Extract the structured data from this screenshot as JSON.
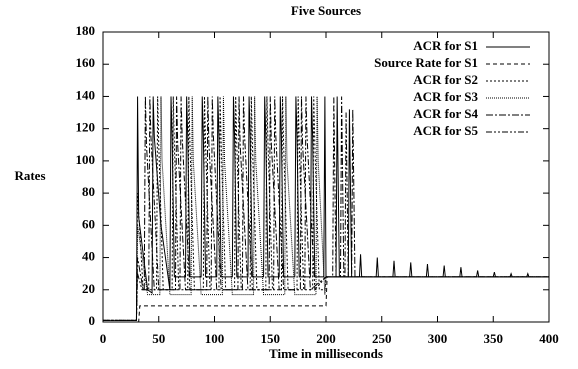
{
  "chart_data": {
    "type": "line",
    "title": "Five Sources",
    "xlabel": "Time in milliseconds",
    "ylabel": "Rates",
    "xlim": [
      0,
      400
    ],
    "xticks": [
      0,
      50,
      100,
      150,
      200,
      250,
      300,
      350,
      400
    ],
    "ylim": [
      0,
      180
    ],
    "yticks": [
      0,
      20,
      40,
      60,
      80,
      100,
      120,
      140,
      160,
      180
    ],
    "legend": "top-right",
    "series": [
      {
        "name": "ACR for S1",
        "color": "#000000",
        "x": [
          0,
          30,
          31,
          32,
          40,
          44,
          45,
          46,
          52,
          60,
          61,
          62,
          64,
          74,
          75,
          76,
          78,
          88,
          89,
          90,
          92,
          102,
          103,
          104,
          106,
          116,
          117,
          118,
          120,
          130,
          131,
          132,
          134,
          144,
          145,
          146,
          148,
          158,
          159,
          160,
          162,
          172,
          173,
          174,
          176,
          186,
          187,
          188,
          190,
          198,
          199,
          200,
          209,
          210,
          212,
          220,
          221,
          223,
          230,
          231,
          232,
          245,
          246,
          247,
          260,
          261,
          262,
          275,
          276,
          277,
          290,
          291,
          292,
          305,
          306,
          307,
          320,
          321,
          322,
          335,
          336,
          337,
          350,
          351,
          352,
          365,
          366,
          367,
          380,
          381,
          382,
          400
        ],
        "values": [
          1,
          1,
          140,
          65,
          20,
          18,
          140,
          115,
          60,
          20,
          140,
          115,
          28,
          28,
          140,
          115,
          28,
          28,
          140,
          115,
          28,
          28,
          140,
          115,
          28,
          28,
          140,
          115,
          28,
          28,
          140,
          115,
          28,
          28,
          140,
          115,
          28,
          28,
          140,
          115,
          28,
          28,
          140,
          115,
          28,
          28,
          140,
          115,
          28,
          28,
          140,
          28,
          28,
          140,
          28,
          28,
          132,
          28,
          28,
          42,
          28,
          28,
          40,
          28,
          28,
          38,
          28,
          28,
          37,
          28,
          28,
          36,
          28,
          28,
          35,
          28,
          28,
          34,
          28,
          28,
          32,
          28,
          28,
          31,
          28,
          28,
          30,
          28,
          28,
          30,
          28,
          28
        ]
      },
      {
        "name": "Source Rate for S1",
        "color": "#000000",
        "x": [
          0,
          32,
          33,
          200,
          201,
          400
        ],
        "values": [
          0,
          0,
          10,
          10,
          28,
          28
        ]
      },
      {
        "name": "ACR for S2",
        "color": "#000000",
        "x": [
          0,
          30,
          31,
          36,
          48,
          49,
          50,
          54,
          62,
          63,
          64,
          68,
          76,
          77,
          78,
          82,
          90,
          91,
          92,
          96,
          104,
          105,
          106,
          110,
          118,
          119,
          120,
          124,
          132,
          133,
          134,
          138,
          146,
          147,
          148,
          152,
          160,
          161,
          162,
          166,
          174,
          175,
          176,
          180,
          188,
          189,
          190,
          194,
          199,
          200,
          400
        ],
        "values": [
          1,
          1,
          80,
          20,
          20,
          140,
          110,
          20,
          20,
          140,
          110,
          20,
          20,
          140,
          110,
          20,
          20,
          140,
          110,
          20,
          20,
          140,
          110,
          20,
          20,
          140,
          110,
          20,
          20,
          140,
          110,
          20,
          20,
          140,
          110,
          20,
          20,
          140,
          110,
          20,
          20,
          140,
          110,
          20,
          20,
          140,
          110,
          20,
          20,
          28,
          28
        ]
      },
      {
        "name": "ACR for S3",
        "color": "#000000",
        "x": [
          0,
          30,
          31,
          40,
          51,
          52,
          53,
          60,
          79,
          80,
          81,
          88,
          107,
          108,
          109,
          116,
          135,
          136,
          137,
          144,
          163,
          164,
          165,
          172,
          191,
          192,
          193,
          199,
          200,
          400
        ],
        "values": [
          1,
          1,
          60,
          17,
          17,
          140,
          100,
          17,
          17,
          140,
          100,
          17,
          17,
          140,
          100,
          17,
          17,
          140,
          100,
          17,
          17,
          140,
          100,
          17,
          17,
          140,
          100,
          17,
          28,
          28
        ]
      },
      {
        "name": "ACR for S4",
        "color": "#000000",
        "x": [
          0,
          30,
          31,
          36,
          37,
          38,
          39,
          46,
          65,
          66,
          67,
          74,
          93,
          94,
          95,
          102,
          121,
          122,
          123,
          130,
          149,
          150,
          151,
          158,
          177,
          178,
          179,
          186,
          200,
          213,
          214,
          216,
          223,
          224,
          226,
          400
        ],
        "values": [
          1,
          1,
          40,
          20,
          20,
          140,
          110,
          20,
          20,
          140,
          110,
          20,
          20,
          140,
          110,
          20,
          20,
          140,
          110,
          20,
          20,
          140,
          110,
          20,
          20,
          140,
          110,
          20,
          28,
          28,
          140,
          28,
          28,
          132,
          28,
          28
        ]
      },
      {
        "name": "ACR for S5",
        "color": "#000000",
        "x": [
          0,
          30,
          31,
          35,
          41,
          42,
          43,
          50,
          69,
          70,
          71,
          78,
          97,
          98,
          99,
          106,
          125,
          126,
          127,
          134,
          153,
          154,
          155,
          162,
          181,
          182,
          183,
          190,
          200,
          206,
          207,
          209,
          217,
          218,
          220,
          400
        ],
        "values": [
          1,
          1,
          30,
          20,
          20,
          140,
          115,
          20,
          20,
          140,
          115,
          20,
          20,
          140,
          115,
          20,
          20,
          140,
          115,
          20,
          20,
          140,
          115,
          20,
          20,
          140,
          115,
          20,
          28,
          28,
          140,
          28,
          28,
          130,
          28,
          28
        ]
      }
    ]
  }
}
